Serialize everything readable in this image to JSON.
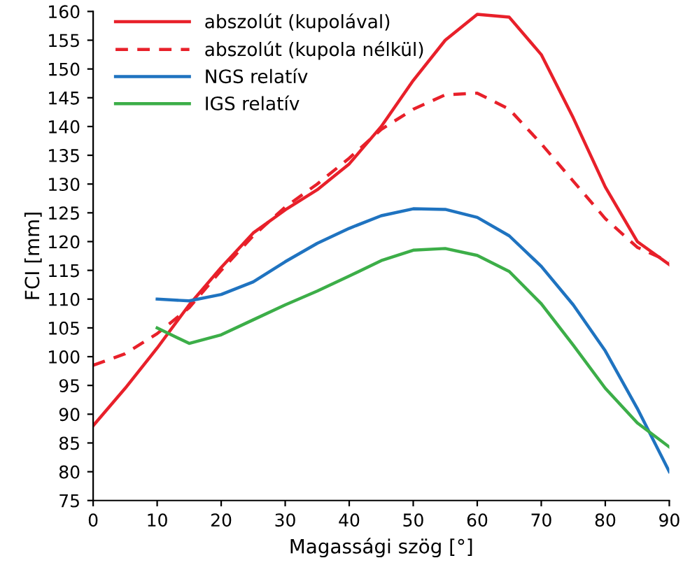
{
  "chart_data": {
    "type": "line",
    "xlabel": "Magassági szög [°]",
    "ylabel": "FCI [mm]",
    "xlim": [
      0,
      90
    ],
    "ylim": [
      75,
      160
    ],
    "xticks": [
      0,
      10,
      20,
      30,
      40,
      50,
      60,
      70,
      80,
      90
    ],
    "yticks": [
      75,
      80,
      85,
      90,
      95,
      100,
      105,
      110,
      115,
      120,
      125,
      130,
      135,
      140,
      145,
      150,
      155,
      160
    ],
    "grid": false,
    "legend": "top left",
    "marker": "none",
    "series": [
      {
        "name": "abszolút (kupolával)",
        "color": "#e8202a",
        "line_style": "solid",
        "x": [
          0,
          5,
          10,
          15,
          20,
          25,
          30,
          35,
          40,
          45,
          50,
          55,
          60,
          65,
          70,
          75,
          80,
          85,
          90
        ],
        "values": [
          88,
          94.5,
          101.5,
          109,
          115.5,
          121.5,
          125.5,
          129,
          133.5,
          140,
          148,
          155,
          159.5,
          159,
          152.5,
          141.5,
          129.5,
          120,
          116
        ]
      },
      {
        "name": "abszolút (kupola nélkül)",
        "color": "#e8202a",
        "line_style": "dashed",
        "x": [
          0,
          5,
          10,
          15,
          20,
          25,
          30,
          35,
          40,
          45,
          50,
          55,
          60,
          65,
          70,
          75,
          80,
          85,
          90
        ],
        "values": [
          98.5,
          100.5,
          104,
          108.5,
          115,
          121,
          126,
          130,
          134.5,
          139.5,
          143,
          145.5,
          145.8,
          143,
          137,
          130.5,
          124,
          119,
          116.5
        ]
      },
      {
        "name": "NGS relatív",
        "color": "#1f73c0",
        "line_style": "solid",
        "x": [
          10,
          15,
          20,
          25,
          30,
          35,
          40,
          45,
          50,
          55,
          60,
          65,
          70,
          75,
          80,
          85,
          90
        ],
        "values": [
          110,
          109.7,
          110.8,
          113,
          116.5,
          119.7,
          122.3,
          124.5,
          125.7,
          125.6,
          124.2,
          121,
          115.7,
          109,
          101,
          91,
          80
        ]
      },
      {
        "name": "IGS relatív",
        "color": "#3cae48",
        "line_style": "solid",
        "x": [
          10,
          15,
          20,
          25,
          30,
          35,
          40,
          45,
          50,
          55,
          60,
          65,
          70,
          75,
          80,
          85,
          90
        ],
        "values": [
          105,
          102.3,
          103.8,
          106.4,
          109,
          111.4,
          114,
          116.7,
          118.5,
          118.8,
          117.6,
          114.8,
          109.2,
          102,
          94.5,
          88.5,
          84.3
        ]
      }
    ]
  }
}
